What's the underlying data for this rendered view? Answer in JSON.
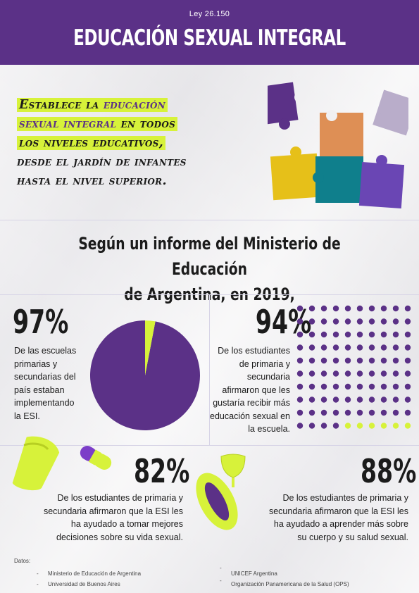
{
  "header": {
    "law": "Ley 26.150",
    "title": "EDUCACIÓN SEXUAL INTEGRAL"
  },
  "intro": {
    "line1_a": "Establece la ",
    "line1_b": "educación",
    "line2_a": "sexual integral",
    "line2_b": " en todos",
    "line3": "los niveles educativos,",
    "line4": "desde el jardín de infantes",
    "line5": "hasta el nivel superior."
  },
  "report": {
    "line1": "Según un informe del Ministerio de Educación",
    "line2": "de Argentina, en 2019,"
  },
  "stats": [
    {
      "value": "97%",
      "lines": [
        "De las escuelas",
        "primarias y",
        "secundarias del",
        "país estaban",
        "implementando",
        "la ESI."
      ]
    },
    {
      "value": "94%",
      "lines": [
        "De los estudiantes",
        "de primaria y",
        "secundaria",
        "afirmaron que les",
        "gustaría recibir más",
        "educación sexual en",
        "la escuela."
      ]
    },
    {
      "value": "82%",
      "lines": [
        "De los estudiantes de primaria y",
        "secundaria afirmaron que la ESI les",
        "ha ayudado a tomar mejores",
        "decisiones sobre su vida sexual."
      ]
    },
    {
      "value": "88%",
      "lines": [
        "De los estudiantes de primaria y",
        "secundaria afirmaron que la ESI les",
        "ha ayudado a aprender más sobre",
        "su cuerpo y su salud sexual."
      ]
    }
  ],
  "pie": {
    "percent": 97,
    "color_main": "#5b3187",
    "color_rest": "#d7f23a"
  },
  "dots": {
    "total": 100,
    "filled": 94,
    "color_main": "#5b3187",
    "color_rest": "#d7f23a"
  },
  "sources": {
    "label": "Datos:",
    "items": [
      "Ministerio de Educación de Argentina",
      "Universidad de Buenos Aires",
      "UNICEF Argentina",
      "Organización Panamericana de la Salud (OPS)"
    ]
  },
  "colors": {
    "purple": "#5b3187",
    "lime": "#d7f23a",
    "orange": "#de8f55",
    "yellow": "#e6c019",
    "teal": "#0f7f8c",
    "lilac": "#b9adca"
  },
  "icons": [
    "puzzle-pieces-icon",
    "condom-icon",
    "pill-capsule-icon",
    "sanitary-pad-icon",
    "menstrual-cup-icon"
  ]
}
